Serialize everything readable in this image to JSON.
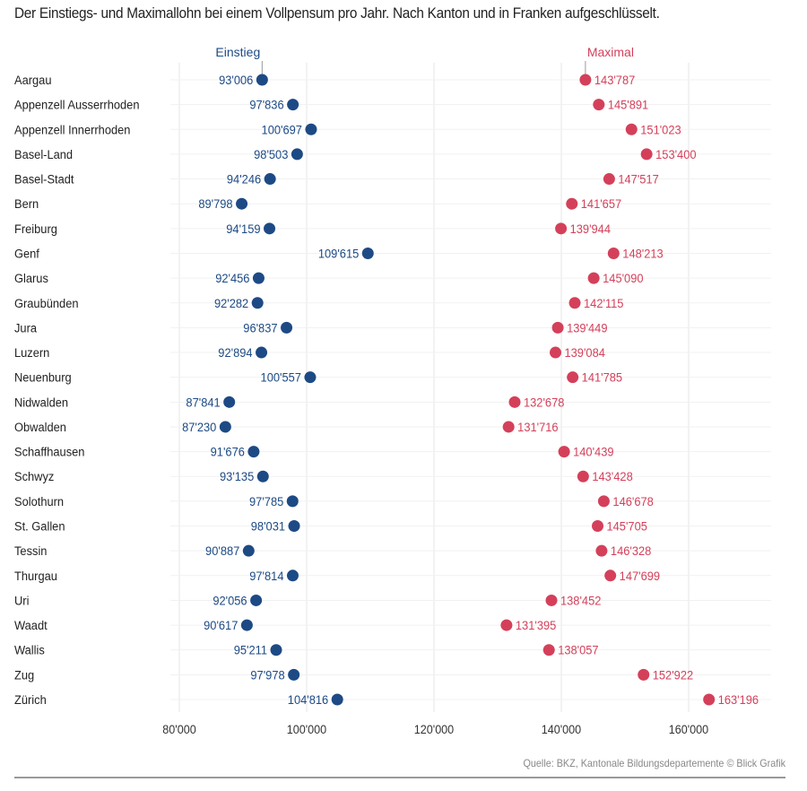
{
  "title": "Der Einstiegs- und Maximallohn bei einem Vollpensum pro Jahr. Nach Kanton und in Franken aufgeschlüsselt.",
  "source": "Quelle: BKZ, Kantonale Bildungsdepartemente © Blick Grafik",
  "colors": {
    "start": "#1d4a85",
    "max": "#d4405a",
    "grid": "#e6e6e6",
    "text": "#222222"
  },
  "chart_data": {
    "type": "dumbbell",
    "categories": [
      "Aargau",
      "Appenzell Ausserrhoden",
      "Appenzell Innerrhoden",
      "Basel-Land",
      "Basel-Stadt",
      "Bern",
      "Freiburg",
      "Genf",
      "Glarus",
      "Graubünden",
      "Jura",
      "Luzern",
      "Neuenburg",
      "Nidwalden",
      "Obwalden",
      "Schaffhausen",
      "Schwyz",
      "Solothurn",
      "St. Gallen",
      "Tessin",
      "Thurgau",
      "Uri",
      "Waadt",
      "Wallis",
      "Zug",
      "Zürich"
    ],
    "series": [
      {
        "name": "Einstieg",
        "values": [
          93006,
          97836,
          100697,
          98503,
          94246,
          89798,
          94159,
          109615,
          92456,
          92282,
          96837,
          92894,
          100557,
          87841,
          87230,
          91676,
          93135,
          97785,
          98031,
          90887,
          97814,
          92056,
          90617,
          95211,
          97978,
          104816
        ],
        "labels": [
          "93'006",
          "97'836",
          "100'697",
          "98'503",
          "94'246",
          "89'798",
          "94'159",
          "109'615",
          "92'456",
          "92'282",
          "96'837",
          "92'894",
          "100'557",
          "87'841",
          "87'230",
          "91'676",
          "93'135",
          "97'785",
          "98'031",
          "90'887",
          "97'814",
          "92'056",
          "90'617",
          "95'211",
          "97'978",
          "104'816"
        ]
      },
      {
        "name": "Maximal",
        "values": [
          143787,
          145891,
          151023,
          153400,
          147517,
          141657,
          139944,
          148213,
          145090,
          142115,
          139449,
          139084,
          141785,
          132678,
          131716,
          140439,
          143428,
          146678,
          145705,
          146328,
          147699,
          138452,
          131395,
          138057,
          152922,
          163196
        ],
        "labels": [
          "143'787",
          "145'891",
          "151'023",
          "153'400",
          "147'517",
          "141'657",
          "139'944",
          "148'213",
          "145'090",
          "142'115",
          "139'449",
          "139'084",
          "141'785",
          "132'678",
          "131'716",
          "140'439",
          "143'428",
          "146'678",
          "145'705",
          "146'328",
          "147'699",
          "138'452",
          "131'395",
          "138'057",
          "152'922",
          "163'196"
        ]
      }
    ],
    "xlim": [
      80000,
      170000
    ],
    "xticks": [
      80000,
      100000,
      120000,
      140000,
      160000
    ],
    "xtick_labels": [
      "80'000",
      "100'000",
      "120'000",
      "140'000",
      "160'000"
    ],
    "grid": true,
    "legend": "top, labels above first row"
  }
}
